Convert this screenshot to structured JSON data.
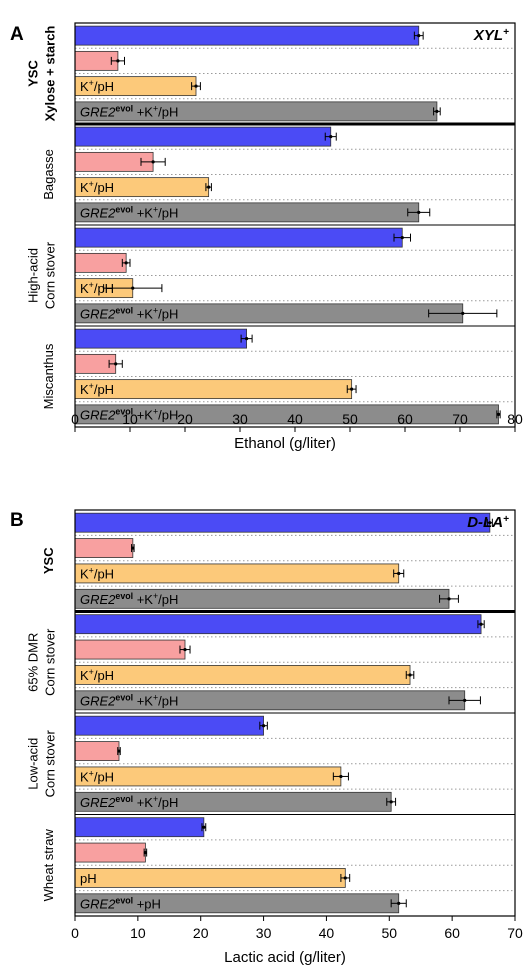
{
  "chart_data": [
    {
      "type": "bar",
      "orientation": "horizontal",
      "panel_label": "A",
      "title": "",
      "corner_label": {
        "main": "XYL",
        "sup": "+"
      },
      "xlabel": "Ethanol (g/liter)",
      "xlim": [
        0,
        80
      ],
      "xticks": [
        "0",
        "10",
        "20",
        "30",
        "40",
        "50",
        "60",
        "70",
        "80"
      ],
      "series": [
        {
          "name": "",
          "label_parts": [],
          "color": "#4b4bf5"
        },
        {
          "name": "",
          "label_parts": [],
          "color": "#f8a0a0"
        },
        {
          "name": "K+/pH",
          "label_parts": [
            {
              "t": "K"
            },
            {
              "t": "+",
              "sup": true
            },
            {
              "t": "/pH"
            }
          ],
          "color": "#fcc97a"
        },
        {
          "name": "GRE2evol +K+/pH",
          "label_parts": [
            {
              "t": "GRE2",
              "i": true
            },
            {
              "t": "evol",
              "sup": true,
              "b": true
            },
            {
              "t": " +K"
            },
            {
              "t": "+",
              "sup": true
            },
            {
              "t": "/pH"
            }
          ],
          "color": "#8c8c8c"
        }
      ],
      "groups": [
        {
          "label": [
            "YSC",
            "Xylose + starch"
          ],
          "label_bold": true,
          "values": [
            62.5,
            7.8,
            22.0,
            65.8
          ],
          "errors": [
            0.8,
            1.2,
            0.8,
            0.6
          ]
        },
        {
          "label": [
            "Bagasse"
          ],
          "label_bold": false,
          "values": [
            46.5,
            14.2,
            24.3,
            62.5
          ],
          "errors": [
            1.0,
            2.2,
            0.5,
            2.0
          ]
        },
        {
          "label": [
            "High-acid",
            "Corn stover"
          ],
          "label_bold": false,
          "values": [
            59.5,
            9.3,
            10.5,
            70.5
          ],
          "errors": [
            1.5,
            0.7,
            5.3,
            6.2
          ]
        },
        {
          "label": [
            "Miscanthus"
          ],
          "label_bold": false,
          "values": [
            31.2,
            7.4,
            50.3,
            77.0
          ],
          "errors": [
            1.0,
            1.2,
            0.8,
            0.3
          ]
        }
      ]
    },
    {
      "type": "bar",
      "orientation": "horizontal",
      "panel_label": "B",
      "title": "",
      "corner_label": {
        "main": "D-LA",
        "sup": "+"
      },
      "xlabel": "Lactic acid (g/liter)",
      "xlim": [
        0,
        70
      ],
      "xticks": [
        "0",
        "10",
        "20",
        "30",
        "40",
        "50",
        "60",
        "70"
      ],
      "series": [
        {
          "name": "",
          "label_parts": [],
          "color": "#4b4bf5"
        },
        {
          "name": "",
          "label_parts": [],
          "color": "#f8a0a0"
        },
        {
          "name": "K+/pH",
          "label_parts": [
            {
              "t": "K"
            },
            {
              "t": "+",
              "sup": true
            },
            {
              "t": "/pH"
            }
          ],
          "color": "#fcc97a"
        },
        {
          "name": "GRE2evol +K+/pH",
          "label_parts": [
            {
              "t": "GRE2",
              "i": true
            },
            {
              "t": "evol",
              "sup": true,
              "b": true
            },
            {
              "t": " +K"
            },
            {
              "t": "+",
              "sup": true
            },
            {
              "t": "/pH"
            }
          ],
          "color": "#8c8c8c"
        }
      ],
      "groups": [
        {
          "label": [
            "YSC"
          ],
          "label_bold": true,
          "values": [
            66.0,
            9.2,
            51.5,
            59.5
          ],
          "errors": [
            0.4,
            0.2,
            0.8,
            1.5
          ],
          "bar_labels": [
            null,
            null,
            null,
            null
          ]
        },
        {
          "label": [
            "65% DMR",
            "Corn stover"
          ],
          "label_bold": false,
          "values": [
            64.6,
            17.5,
            53.3,
            62.0
          ],
          "errors": [
            0.5,
            0.8,
            0.6,
            2.5
          ]
        },
        {
          "label": [
            "Low-acid",
            "Corn stover"
          ],
          "label_bold": false,
          "values": [
            30.0,
            7.0,
            42.3,
            50.3
          ],
          "errors": [
            0.6,
            0.2,
            1.2,
            0.7
          ]
        },
        {
          "label": [
            "Wheat straw"
          ],
          "label_bold": false,
          "values": [
            20.5,
            11.2,
            43.0,
            51.5
          ],
          "errors": [
            0.3,
            0.2,
            0.7,
            1.2
          ],
          "label_overrides": [
            null,
            null,
            [
              {
                "t": "pH"
              }
            ],
            [
              {
                "t": "GRE2",
                "i": true
              },
              {
                "t": "evol",
                "sup": true,
                "b": true
              },
              {
                "t": " +pH"
              }
            ]
          ]
        }
      ]
    }
  ]
}
